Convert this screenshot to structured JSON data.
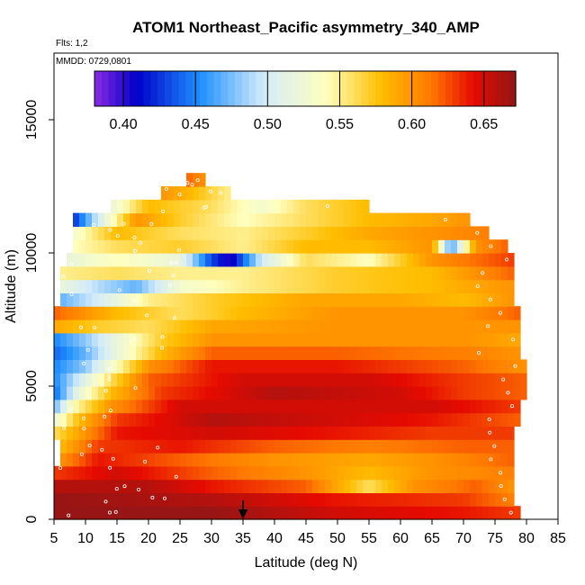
{
  "chart_data": {
    "type": "heatmap",
    "title": "ATOM1 Northeast_Pacific asymmetry_340_AMP",
    "subtitle_flights": "Flts: 1,2",
    "subtitle_dates": "MMDD: 0729,0801",
    "xlabel": "Latitude (deg N)",
    "ylabel": "Altitude (m)",
    "xlim": [
      5,
      85
    ],
    "ylim": [
      0,
      17500
    ],
    "xticks": [
      "5",
      "10",
      "15",
      "20",
      "25",
      "30",
      "35",
      "40",
      "45",
      "50",
      "55",
      "60",
      "65",
      "70",
      "75",
      "80",
      "85"
    ],
    "yticks": [
      "0",
      "5000",
      "10000",
      "15000"
    ],
    "colorbar": {
      "min": 0.38,
      "max": 0.672,
      "tick_labels": [
        "0.40",
        "0.45",
        "0.50",
        "0.55",
        "0.60",
        "0.65"
      ],
      "tick_values": [
        0.4,
        0.45,
        0.5,
        0.55,
        0.6,
        0.65
      ]
    },
    "cell_size": {
      "lat": 1,
      "alt": 500
    },
    "rows": [
      {
        "alt": 250,
        "lat_start": 5,
        "lat_end": 79,
        "profile": [
          [
            5,
            0.67
          ],
          [
            30,
            0.67
          ],
          [
            50,
            0.65
          ],
          [
            70,
            0.64
          ],
          [
            79,
            0.63
          ]
        ]
      },
      {
        "alt": 750,
        "lat_start": 5,
        "lat_end": 78,
        "profile": [
          [
            5,
            0.67
          ],
          [
            30,
            0.66
          ],
          [
            50,
            0.64
          ],
          [
            70,
            0.63
          ],
          [
            78,
            0.61
          ]
        ]
      },
      {
        "alt": 1250,
        "lat_start": 5,
        "lat_end": 78,
        "profile": [
          [
            5,
            0.66
          ],
          [
            20,
            0.66
          ],
          [
            30,
            0.64
          ],
          [
            45,
            0.62
          ],
          [
            55,
            0.56
          ],
          [
            62,
            0.6
          ],
          [
            72,
            0.62
          ],
          [
            78,
            0.6
          ]
        ]
      },
      {
        "alt": 1750,
        "lat_start": 5,
        "lat_end": 78,
        "profile": [
          [
            5,
            0.63
          ],
          [
            15,
            0.65
          ],
          [
            30,
            0.62
          ],
          [
            45,
            0.6
          ],
          [
            55,
            0.58
          ],
          [
            65,
            0.6
          ],
          [
            78,
            0.61
          ]
        ]
      },
      {
        "alt": 2250,
        "lat_start": 6,
        "lat_end": 78,
        "profile": [
          [
            6,
            0.6
          ],
          [
            12,
            0.64
          ],
          [
            25,
            0.62
          ],
          [
            40,
            0.6
          ],
          [
            55,
            0.59
          ],
          [
            65,
            0.6
          ],
          [
            78,
            0.62
          ]
        ]
      },
      {
        "alt": 2750,
        "lat_start": 6,
        "lat_end": 78,
        "profile": [
          [
            6,
            0.58
          ],
          [
            12,
            0.63
          ],
          [
            25,
            0.64
          ],
          [
            40,
            0.62
          ],
          [
            55,
            0.61
          ],
          [
            70,
            0.62
          ],
          [
            78,
            0.62
          ]
        ]
      },
      {
        "alt": 3250,
        "lat_start": 5,
        "lat_end": 78,
        "profile": [
          [
            5,
            0.56
          ],
          [
            10,
            0.6
          ],
          [
            15,
            0.64
          ],
          [
            30,
            0.65
          ],
          [
            50,
            0.64
          ],
          [
            65,
            0.63
          ],
          [
            78,
            0.63
          ]
        ]
      },
      {
        "alt": 3750,
        "lat_start": 5,
        "lat_end": 79,
        "profile": [
          [
            5,
            0.52
          ],
          [
            9,
            0.58
          ],
          [
            15,
            0.63
          ],
          [
            30,
            0.66
          ],
          [
            50,
            0.65
          ],
          [
            65,
            0.64
          ],
          [
            79,
            0.62
          ]
        ]
      },
      {
        "alt": 4250,
        "lat_start": 5,
        "lat_end": 79,
        "profile": [
          [
            5,
            0.47
          ],
          [
            8,
            0.54
          ],
          [
            14,
            0.6
          ],
          [
            25,
            0.65
          ],
          [
            45,
            0.65
          ],
          [
            65,
            0.65
          ],
          [
            79,
            0.63
          ]
        ]
      },
      {
        "alt": 4750,
        "lat_start": 5,
        "lat_end": 80,
        "profile": [
          [
            5,
            0.44
          ],
          [
            9,
            0.52
          ],
          [
            14,
            0.58
          ],
          [
            22,
            0.63
          ],
          [
            40,
            0.66
          ],
          [
            60,
            0.65
          ],
          [
            70,
            0.63
          ],
          [
            80,
            0.62
          ]
        ]
      },
      {
        "alt": 5250,
        "lat_start": 5,
        "lat_end": 80,
        "profile": [
          [
            5,
            0.45
          ],
          [
            9,
            0.5
          ],
          [
            14,
            0.56
          ],
          [
            20,
            0.62
          ],
          [
            35,
            0.65
          ],
          [
            55,
            0.65
          ],
          [
            70,
            0.63
          ],
          [
            80,
            0.62
          ]
        ]
      },
      {
        "alt": 5750,
        "lat_start": 5,
        "lat_end": 80,
        "profile": [
          [
            5,
            0.45
          ],
          [
            10,
            0.48
          ],
          [
            15,
            0.54
          ],
          [
            20,
            0.6
          ],
          [
            30,
            0.64
          ],
          [
            50,
            0.64
          ],
          [
            70,
            0.62
          ],
          [
            80,
            0.6
          ]
        ]
      },
      {
        "alt": 6250,
        "lat_start": 5,
        "lat_end": 79,
        "profile": [
          [
            5,
            0.44
          ],
          [
            10,
            0.47
          ],
          [
            15,
            0.52
          ],
          [
            22,
            0.58
          ],
          [
            30,
            0.62
          ],
          [
            50,
            0.62
          ],
          [
            70,
            0.61
          ],
          [
            79,
            0.6
          ]
        ]
      },
      {
        "alt": 6750,
        "lat_start": 5,
        "lat_end": 79,
        "profile": [
          [
            5,
            0.45
          ],
          [
            10,
            0.48
          ],
          [
            15,
            0.52
          ],
          [
            22,
            0.57
          ],
          [
            30,
            0.6
          ],
          [
            50,
            0.6
          ],
          [
            70,
            0.6
          ],
          [
            79,
            0.59
          ]
        ]
      },
      {
        "alt": 7250,
        "lat_start": 5,
        "lat_end": 79,
        "profile": [
          [
            5,
            0.59
          ],
          [
            12,
            0.57
          ],
          [
            20,
            0.56
          ],
          [
            30,
            0.59
          ],
          [
            50,
            0.6
          ],
          [
            70,
            0.6
          ],
          [
            79,
            0.6
          ]
        ]
      },
      {
        "alt": 7750,
        "lat_start": 5,
        "lat_end": 79,
        "profile": [
          [
            5,
            0.62
          ],
          [
            15,
            0.58
          ],
          [
            25,
            0.56
          ],
          [
            35,
            0.58
          ],
          [
            50,
            0.6
          ],
          [
            70,
            0.6
          ],
          [
            79,
            0.62
          ]
        ]
      },
      {
        "alt": 8250,
        "lat_start": 6,
        "lat_end": 78,
        "profile": [
          [
            6,
            0.47
          ],
          [
            12,
            0.5
          ],
          [
            20,
            0.55
          ],
          [
            30,
            0.57
          ],
          [
            45,
            0.59
          ],
          [
            60,
            0.59
          ],
          [
            70,
            0.58
          ],
          [
            78,
            0.6
          ]
        ]
      },
      {
        "alt": 8750,
        "lat_start": 6,
        "lat_end": 78,
        "profile": [
          [
            6,
            0.52
          ],
          [
            12,
            0.49
          ],
          [
            18,
            0.47
          ],
          [
            25,
            0.53
          ],
          [
            35,
            0.55
          ],
          [
            50,
            0.57
          ],
          [
            65,
            0.58
          ],
          [
            78,
            0.6
          ]
        ]
      },
      {
        "alt": 9250,
        "lat_start": 6,
        "lat_end": 78,
        "profile": [
          [
            6,
            0.55
          ],
          [
            15,
            0.56
          ],
          [
            25,
            0.55
          ],
          [
            35,
            0.55
          ],
          [
            50,
            0.57
          ],
          [
            65,
            0.58
          ],
          [
            78,
            0.62
          ]
        ]
      },
      {
        "alt": 9750,
        "lat_start": 7,
        "lat_end": 78,
        "profile": [
          [
            7,
            0.52
          ],
          [
            15,
            0.54
          ],
          [
            25,
            0.52
          ],
          [
            30,
            0.43
          ],
          [
            33,
            0.4
          ],
          [
            38,
            0.5
          ],
          [
            45,
            0.56
          ],
          [
            55,
            0.54
          ],
          [
            65,
            0.6
          ],
          [
            78,
            0.63
          ]
        ]
      },
      {
        "alt": 10250,
        "lat_start": 8,
        "lat_end": 77,
        "profile": [
          [
            8,
            0.54
          ],
          [
            15,
            0.56
          ],
          [
            25,
            0.57
          ],
          [
            35,
            0.55
          ],
          [
            45,
            0.58
          ],
          [
            55,
            0.58
          ],
          [
            65,
            0.6
          ],
          [
            68,
            0.46
          ],
          [
            72,
            0.6
          ],
          [
            77,
            0.62
          ]
        ]
      },
      {
        "alt": 10750,
        "lat_start": 8,
        "lat_end": 74,
        "profile": [
          [
            8,
            0.53
          ],
          [
            15,
            0.58
          ],
          [
            25,
            0.56
          ],
          [
            35,
            0.55
          ],
          [
            45,
            0.57
          ],
          [
            55,
            0.59
          ],
          [
            65,
            0.6
          ],
          [
            74,
            0.61
          ]
        ]
      },
      {
        "alt": 11250,
        "lat_start": 8,
        "lat_end": 71,
        "profile": [
          [
            8,
            0.42
          ],
          [
            12,
            0.5
          ],
          [
            18,
            0.6
          ],
          [
            25,
            0.57
          ],
          [
            35,
            0.54
          ],
          [
            45,
            0.56
          ],
          [
            55,
            0.58
          ],
          [
            65,
            0.59
          ],
          [
            71,
            0.6
          ]
        ]
      },
      {
        "alt": 11750,
        "lat_start": 14,
        "lat_end": 55,
        "profile": [
          [
            14,
            0.52
          ],
          [
            20,
            0.58
          ],
          [
            30,
            0.56
          ],
          [
            38,
            0.53
          ],
          [
            45,
            0.56
          ],
          [
            55,
            0.58
          ]
        ]
      },
      {
        "alt": 12250,
        "lat_start": 22,
        "lat_end": 33,
        "profile": [
          [
            22,
            0.6
          ],
          [
            27,
            0.58
          ],
          [
            33,
            0.55
          ]
        ]
      },
      {
        "alt": 12750,
        "lat_start": 26,
        "lat_end": 29,
        "profile": [
          [
            26,
            0.62
          ],
          [
            29,
            0.6
          ]
        ]
      }
    ],
    "arrow_at_latitude": 35
  }
}
